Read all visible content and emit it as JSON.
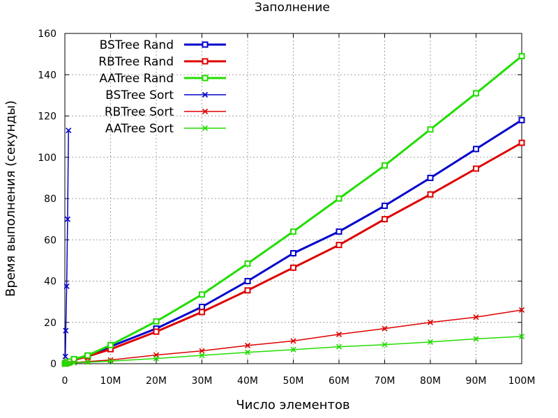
{
  "chart_data": {
    "type": "line",
    "title": "Заполнение",
    "xlabel": "Число элементов",
    "ylabel": "Время выполнения (секунды)",
    "xlim": [
      0,
      100000000
    ],
    "ylim": [
      0,
      160
    ],
    "grid": true,
    "legend_position": "top-left",
    "x_ticks": [
      {
        "value": 0,
        "label": "0"
      },
      {
        "value": 10000000,
        "label": "10M"
      },
      {
        "value": 20000000,
        "label": "20M"
      },
      {
        "value": 30000000,
        "label": "30M"
      },
      {
        "value": 40000000,
        "label": "40M"
      },
      {
        "value": 50000000,
        "label": "50M"
      },
      {
        "value": 60000000,
        "label": "60M"
      },
      {
        "value": 70000000,
        "label": "70M"
      },
      {
        "value": 80000000,
        "label": "80M"
      },
      {
        "value": 90000000,
        "label": "90M"
      },
      {
        "value": 100000000,
        "label": "100M"
      }
    ],
    "y_ticks": [
      {
        "value": 0,
        "label": "0"
      },
      {
        "value": 20,
        "label": "20"
      },
      {
        "value": 40,
        "label": "40"
      },
      {
        "value": 60,
        "label": "60"
      },
      {
        "value": 80,
        "label": "80"
      },
      {
        "value": 100,
        "label": "100"
      },
      {
        "value": 120,
        "label": "120"
      },
      {
        "value": 140,
        "label": "140"
      },
      {
        "value": 160,
        "label": "160"
      }
    ],
    "series": [
      {
        "name": "BSTree Rand",
        "color": "#0000cc",
        "marker": "square",
        "thick": true,
        "x": [
          0,
          100000,
          250000,
          500000,
          1000000,
          2000000,
          5000000,
          10000000,
          20000000,
          30000000,
          40000000,
          50000000,
          60000000,
          70000000,
          80000000,
          90000000,
          100000000
        ],
        "y": [
          0,
          0.1,
          0.3,
          0.5,
          0.9,
          2,
          3.8,
          8.3,
          17,
          27.5,
          40,
          53.5,
          64,
          76.5,
          90,
          104,
          118
        ]
      },
      {
        "name": "RBTree Rand",
        "color": "#dd0000",
        "marker": "square",
        "thick": true,
        "x": [
          0,
          100000,
          250000,
          500000,
          1000000,
          2000000,
          5000000,
          10000000,
          20000000,
          30000000,
          40000000,
          50000000,
          60000000,
          70000000,
          80000000,
          90000000,
          100000000
        ],
        "y": [
          0,
          0.1,
          0.2,
          0.4,
          0.8,
          1.8,
          3.5,
          7,
          15.5,
          25,
          35.5,
          46.5,
          57.5,
          70,
          82,
          94.5,
          107
        ]
      },
      {
        "name": "AATree Rand",
        "color": "#22dd00",
        "marker": "square",
        "thick": true,
        "x": [
          0,
          100000,
          250000,
          500000,
          1000000,
          2000000,
          5000000,
          10000000,
          20000000,
          30000000,
          40000000,
          50000000,
          60000000,
          70000000,
          80000000,
          90000000,
          100000000
        ],
        "y": [
          0,
          0.1,
          0.3,
          0.6,
          1,
          2.2,
          4,
          9,
          20.5,
          33.5,
          48.5,
          64,
          80,
          96,
          113.5,
          131,
          149
        ]
      },
      {
        "name": "BSTree Sort",
        "color": "#0000cc",
        "marker": "x",
        "thick": false,
        "x": [
          100000,
          200000,
          400000,
          600000,
          800000
        ],
        "y": [
          3.5,
          16,
          37.5,
          70,
          113
        ]
      },
      {
        "name": "RBTree Sort",
        "color": "#dd0000",
        "marker": "x",
        "thick": false,
        "x": [
          0,
          100000,
          250000,
          500000,
          1000000,
          2000000,
          5000000,
          10000000,
          20000000,
          30000000,
          40000000,
          50000000,
          60000000,
          70000000,
          80000000,
          90000000,
          100000000
        ],
        "y": [
          0,
          0.05,
          0.1,
          0.2,
          0.3,
          0.5,
          1,
          1.8,
          4.2,
          6.2,
          8.8,
          11,
          14.2,
          17,
          20,
          22.5,
          26
        ]
      },
      {
        "name": "AATree Sort",
        "color": "#22dd00",
        "marker": "x",
        "thick": false,
        "x": [
          0,
          100000,
          250000,
          500000,
          1000000,
          2000000,
          5000000,
          10000000,
          20000000,
          30000000,
          40000000,
          50000000,
          60000000,
          70000000,
          80000000,
          90000000,
          100000000
        ],
        "y": [
          0,
          0.05,
          0.1,
          0.15,
          0.2,
          0.4,
          0.7,
          1.2,
          2.5,
          4,
          5.5,
          6.8,
          8.2,
          9.2,
          10.5,
          12,
          13.2
        ]
      }
    ]
  }
}
